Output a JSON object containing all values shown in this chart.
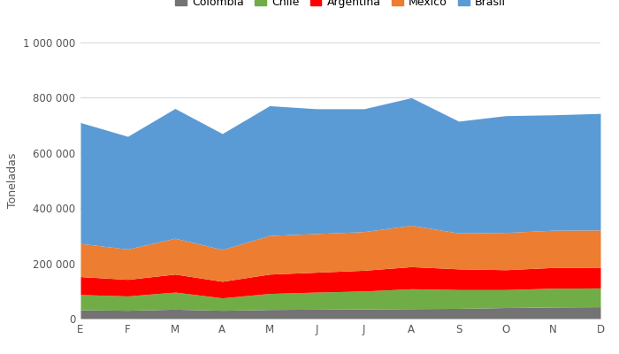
{
  "months": [
    "E",
    "F",
    "M",
    "A",
    "M",
    "J",
    "J",
    "A",
    "S",
    "O",
    "N",
    "D"
  ],
  "colombia": [
    32000,
    30000,
    34000,
    30000,
    33000,
    34000,
    35000,
    36000,
    37000,
    40000,
    42000,
    43000
  ],
  "chile": [
    55000,
    52000,
    62000,
    45000,
    58000,
    62000,
    65000,
    72000,
    68000,
    65000,
    68000,
    68000
  ],
  "argentina": [
    65000,
    60000,
    65000,
    60000,
    70000,
    72000,
    75000,
    80000,
    75000,
    72000,
    75000,
    75000
  ],
  "mexico": [
    120000,
    110000,
    130000,
    115000,
    140000,
    140000,
    140000,
    150000,
    130000,
    135000,
    135000,
    135000
  ],
  "brasil": [
    438000,
    408000,
    470000,
    420000,
    470000,
    452000,
    445000,
    462000,
    405000,
    423000,
    418000,
    422000
  ],
  "colors": {
    "colombia": "#737373",
    "chile": "#70ad47",
    "argentina": "#ff0000",
    "mexico": "#ed7d31",
    "brasil": "#5b9bd5"
  },
  "ylabel": "Toneladas",
  "ylim": [
    0,
    1000000
  ],
  "yticks": [
    0,
    200000,
    400000,
    600000,
    800000,
    1000000
  ],
  "ytick_labels": [
    "0",
    "200 000",
    "400 000",
    "600 000",
    "800 000",
    "1 000 000"
  ],
  "legend_labels": [
    "Colombia",
    "Chile",
    "Argentina",
    "México",
    "Brasil"
  ],
  "bg_color": "#ffffff",
  "grid_color": "#d9d9d9"
}
